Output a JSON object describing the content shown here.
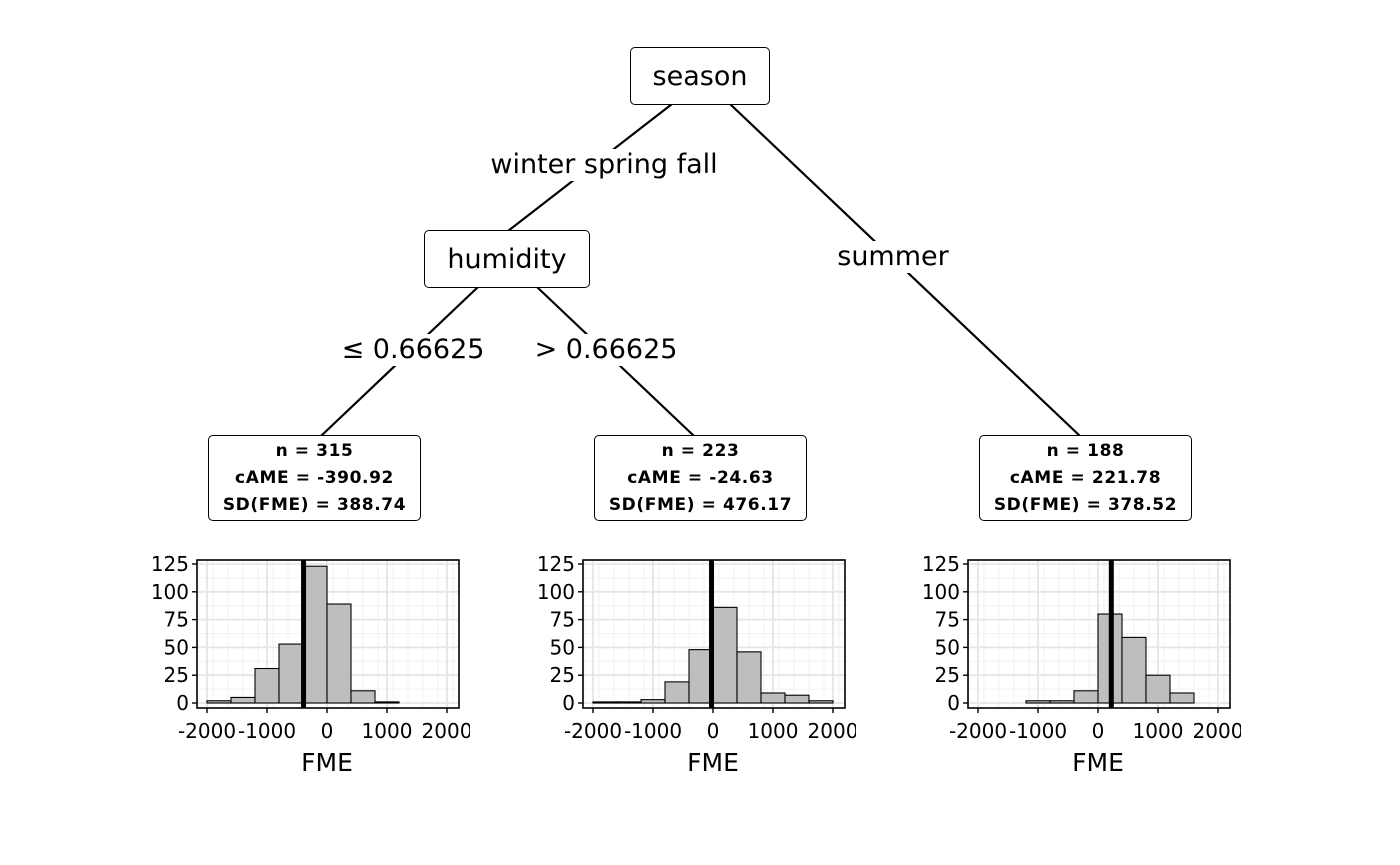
{
  "root": {
    "label": "season"
  },
  "edges": {
    "root_left": "winter spring fall",
    "root_right": "summer",
    "humidity_left": "≤ 0.66625",
    "humidity_right": ">  0.66625"
  },
  "inner_node": {
    "label": "humidity"
  },
  "leaves": [
    {
      "n": "n = 315",
      "came": "cAME = -390.92",
      "sd": "SD(FME) = 388.74"
    },
    {
      "n": "n = 223",
      "came": "cAME = -24.63",
      "sd": "SD(FME) = 476.17"
    },
    {
      "n": "n = 188",
      "came": "cAME = 221.78",
      "sd": "SD(FME) = 378.52"
    }
  ],
  "chart_data": [
    {
      "type": "bar",
      "title": "",
      "xlabel": "FME",
      "ylabel": "",
      "xlim": [
        -2000,
        2000
      ],
      "ylim": [
        0,
        125
      ],
      "xticks": [
        "-2000",
        "-1000",
        "0",
        "1000",
        "2000"
      ],
      "yticks": [
        "0",
        "25",
        "50",
        "75",
        "100",
        "125"
      ],
      "bin_starts": [
        -2000,
        -1600,
        -1200,
        -800,
        -400,
        0,
        400,
        800
      ],
      "bin_width": 400,
      "values": [
        2,
        5,
        31,
        53,
        123,
        89,
        11,
        1
      ],
      "vline": -390.92
    },
    {
      "type": "bar",
      "title": "",
      "xlabel": "FME",
      "ylabel": "",
      "xlim": [
        -2000,
        2000
      ],
      "ylim": [
        0,
        125
      ],
      "xticks": [
        "-2000",
        "-1000",
        "0",
        "1000",
        "2000"
      ],
      "yticks": [
        "0",
        "25",
        "50",
        "75",
        "100",
        "125"
      ],
      "bin_starts": [
        -2000,
        -1600,
        -1200,
        -800,
        -400,
        0,
        400,
        800,
        1200,
        1600
      ],
      "bin_width": 400,
      "values": [
        1,
        1,
        3,
        19,
        48,
        86,
        46,
        9,
        7,
        2
      ],
      "vline": -24.63
    },
    {
      "type": "bar",
      "title": "",
      "xlabel": "FME",
      "ylabel": "",
      "xlim": [
        -2000,
        2000
      ],
      "ylim": [
        0,
        125
      ],
      "xticks": [
        "-2000",
        "-1000",
        "0",
        "1000",
        "2000"
      ],
      "yticks": [
        "0",
        "25",
        "50",
        "75",
        "100",
        "125"
      ],
      "bin_starts": [
        -2000,
        -1600,
        -1200,
        -800,
        -400,
        0,
        400,
        800,
        1200,
        1600
      ],
      "bin_width": 400,
      "values": [
        0,
        0,
        2,
        2,
        11,
        80,
        59,
        25,
        9,
        0
      ],
      "vline": 221.78
    }
  ]
}
